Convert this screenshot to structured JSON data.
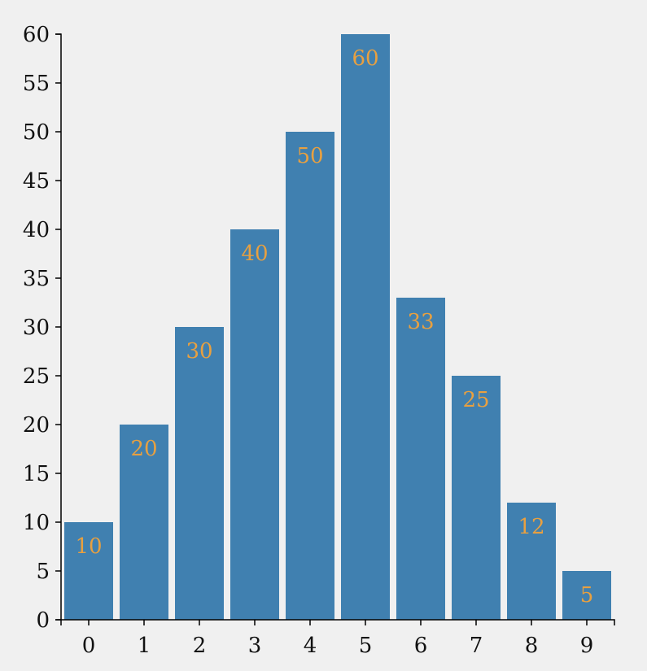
{
  "chart_data": {
    "type": "bar",
    "categories": [
      "0",
      "1",
      "2",
      "3",
      "4",
      "5",
      "6",
      "7",
      "8",
      "9"
    ],
    "values": [
      10,
      20,
      30,
      40,
      50,
      60,
      33,
      25,
      12,
      5
    ],
    "title": "",
    "xlabel": "",
    "ylabel": "",
    "ylim": [
      0,
      60
    ],
    "yticks": [
      0,
      5,
      10,
      15,
      20,
      25,
      30,
      35,
      40,
      45,
      50,
      55,
      60
    ],
    "grid": false,
    "data_labels": true
  },
  "colors": {
    "bar": "#4080b0",
    "label": "#e8a040",
    "background": "#f0f0f0",
    "axis": "#000000"
  }
}
